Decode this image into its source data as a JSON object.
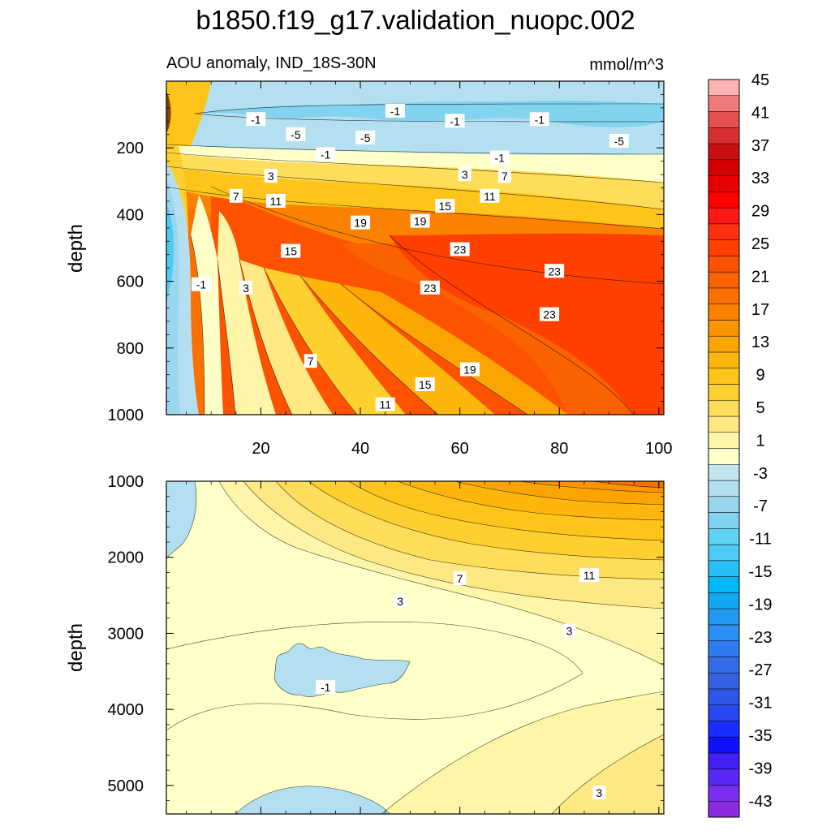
{
  "chart_data": {
    "type": "heatmap",
    "title": "b1850.f19_g17.validation_nuopc.002",
    "subtitle_left": "AOU anomaly, IND_18S-30N",
    "subtitle_right": "mmol/m^3",
    "ylabel": "depth",
    "xlim": [
      1,
      101
    ],
    "x_ticks": [
      20,
      40,
      60,
      80,
      100
    ],
    "x_tick_labels": [
      "20",
      "40",
      "60",
      "80",
      "100"
    ],
    "upper_panel": {
      "ylim": [
        0,
        1000
      ],
      "y_reversed": true,
      "y_ticks": [
        200,
        400,
        600,
        800,
        1000
      ],
      "y_tick_labels": [
        "200",
        "400",
        "600",
        "800",
        "1000"
      ],
      "x_axis_labels_shown": true,
      "contour_labels": [
        {
          "text": "-1",
          "x": 19,
          "y": 115
        },
        {
          "text": "-1",
          "x": 47,
          "y": 90
        },
        {
          "text": "-1",
          "x": 59,
          "y": 120
        },
        {
          "text": "-1",
          "x": 76,
          "y": 115
        },
        {
          "text": "-5",
          "x": 27,
          "y": 160
        },
        {
          "text": "-5",
          "x": 41,
          "y": 170
        },
        {
          "text": "-5",
          "x": 92,
          "y": 180
        },
        {
          "text": "-1",
          "x": 68,
          "y": 230
        },
        {
          "text": "-1",
          "x": 33,
          "y": 220
        },
        {
          "text": "3",
          "x": 22,
          "y": 285
        },
        {
          "text": "3",
          "x": 61,
          "y": 280
        },
        {
          "text": "7",
          "x": 69,
          "y": 285
        },
        {
          "text": "7",
          "x": 15,
          "y": 345
        },
        {
          "text": "11",
          "x": 23,
          "y": 360
        },
        {
          "text": "11",
          "x": 66,
          "y": 345
        },
        {
          "text": "15",
          "x": 57,
          "y": 375
        },
        {
          "text": "19",
          "x": 40,
          "y": 425
        },
        {
          "text": "19",
          "x": 52,
          "y": 420
        },
        {
          "text": "15",
          "x": 26,
          "y": 510
        },
        {
          "text": "23",
          "x": 60,
          "y": 505
        },
        {
          "text": "23",
          "x": 79,
          "y": 570
        },
        {
          "text": "23",
          "x": 54,
          "y": 620
        },
        {
          "text": "-1",
          "x": 8,
          "y": 610
        },
        {
          "text": "3",
          "x": 17,
          "y": 620
        },
        {
          "text": "23",
          "x": 78,
          "y": 700
        },
        {
          "text": "7",
          "x": 30,
          "y": 840
        },
        {
          "text": "19",
          "x": 62,
          "y": 865
        },
        {
          "text": "15",
          "x": 53,
          "y": 910
        },
        {
          "text": "11",
          "x": 45,
          "y": 970
        }
      ]
    },
    "lower_panel": {
      "ylim": [
        1000,
        5375
      ],
      "y_reversed": true,
      "y_ticks": [
        1000,
        2000,
        3000,
        4000,
        5000
      ],
      "y_tick_labels": [
        "1000",
        "2000",
        "3000",
        "4000",
        "5000"
      ],
      "x_axis_labels_shown": false,
      "contour_labels": [
        {
          "text": "7",
          "x": 60,
          "y": 2280
        },
        {
          "text": "11",
          "x": 86,
          "y": 2240
        },
        {
          "text": "3",
          "x": 48,
          "y": 2580
        },
        {
          "text": "3",
          "x": 82,
          "y": 2970
        },
        {
          "text": "-1",
          "x": 33,
          "y": 3710
        },
        {
          "text": "3",
          "x": 88,
          "y": 5100
        }
      ]
    },
    "colorbar": {
      "levels": [
        -45,
        -43,
        -41,
        -39,
        -37,
        -35,
        -33,
        -31,
        -29,
        -27,
        -25,
        -23,
        -21,
        -19,
        -17,
        -15,
        -13,
        -11,
        -9,
        -7,
        -5,
        -3,
        -1,
        1,
        3,
        5,
        7,
        9,
        11,
        13,
        15,
        17,
        19,
        21,
        23,
        25,
        27,
        29,
        31,
        33,
        35,
        37,
        39,
        41,
        43,
        45
      ],
      "tick_labels": [
        "45",
        "41",
        "37",
        "33",
        "29",
        "25",
        "21",
        "17",
        "13",
        "9",
        "5",
        "1",
        "-3",
        "-7",
        "-11",
        "-15",
        "-19",
        "-23",
        "-27",
        "-31",
        "-35",
        "-39",
        "-43"
      ],
      "colors_bottom_to_top": [
        "#8a2be2",
        "#7a2ff0",
        "#5a28f5",
        "#4020f5",
        "#1010ff",
        "#1a2cff",
        "#2848f0",
        "#2f55e6",
        "#3361e0",
        "#336ce6",
        "#2f7cf0",
        "#2b8ef5",
        "#2299f0",
        "#10a8f0",
        "#00b8f5",
        "#27c0f5",
        "#4ccbf5",
        "#60d2f2",
        "#82d3f0",
        "#9ad6ee",
        "#b4dff0",
        "#c4e5f0",
        "#ffffc8",
        "#fff5a8",
        "#fee884",
        "#fedd5a",
        "#fdd030",
        "#fdc41a",
        "#fcb60d",
        "#fba402",
        "#fb9400",
        "#fb8200",
        "#fb7100",
        "#fb6200",
        "#fd5200",
        "#ff4000",
        "#ff3010",
        "#ff1818",
        "#ff0000",
        "#e80000",
        "#d40000",
        "#c81010",
        "#d83030",
        "#e45050",
        "#f07a7a",
        "#fcb4b4"
      ]
    }
  }
}
